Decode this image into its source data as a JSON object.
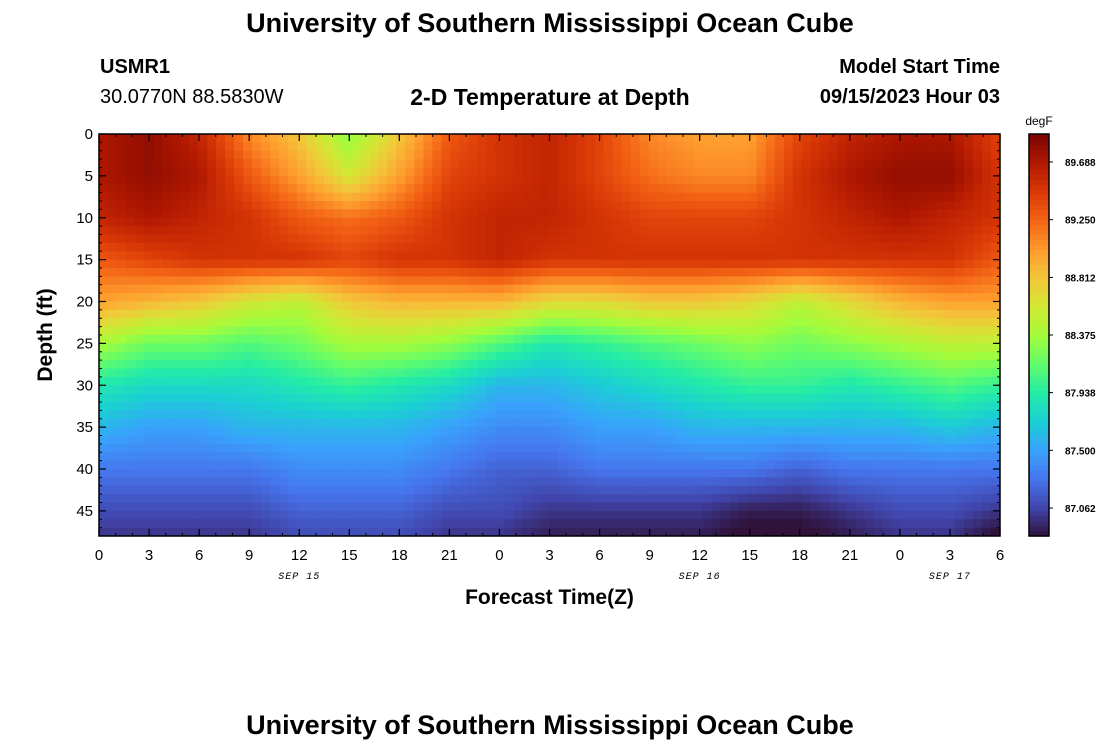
{
  "header": {
    "title": "University of Southern Mississippi Ocean Cube",
    "station_id": "USMR1",
    "coordinates": "30.0770N  88.5830W",
    "subtitle": "2-D Temperature at Depth",
    "model_start_label": "Model Start Time",
    "model_start_value": "09/15/2023 Hour 03"
  },
  "footer": {
    "title": "University of Southern Mississippi Ocean Cube"
  },
  "chart_data": {
    "type": "heatmap",
    "title": "2-D Temperature at Depth",
    "xlabel": "Forecast Time(Z)",
    "ylabel": "Depth (ft)",
    "x_ticks": [
      "0",
      "3",
      "6",
      "9",
      "12",
      "15",
      "18",
      "21",
      "0",
      "3",
      "6",
      "9",
      "12",
      "15",
      "18",
      "21",
      "0",
      "3",
      "6"
    ],
    "x_dates": [
      {
        "label": "SEP 15",
        "hour": 12
      },
      {
        "label": "SEP 16",
        "hour": 36
      },
      {
        "label": "SEP 17",
        "hour": 51
      }
    ],
    "xlim_hours": [
      0,
      54
    ],
    "y_ticks": [
      0,
      5,
      10,
      15,
      20,
      25,
      30,
      35,
      40,
      45
    ],
    "ylim": [
      0,
      48
    ],
    "y_inverted": true,
    "colorbar": {
      "unit": "degF",
      "ticks": [
        "89.688",
        "89.250",
        "88.812",
        "88.375",
        "87.938",
        "87.500",
        "87.062"
      ],
      "range": [
        86.85,
        89.9
      ]
    },
    "colormap": [
      "#30123b",
      "#4145ab",
      "#4675ed",
      "#39a2fc",
      "#1bcfd4",
      "#24eca6",
      "#61fc6c",
      "#a4fc3b",
      "#d1e834",
      "#f3c63a",
      "#fe9b2d",
      "#f36315",
      "#d93806",
      "#b11901",
      "#7a0402"
    ],
    "depths_ft": [
      0,
      5,
      10,
      15,
      20,
      25,
      30,
      35,
      40,
      45,
      48
    ],
    "hours": [
      0,
      3,
      6,
      9,
      12,
      15,
      18,
      21,
      24,
      27,
      30,
      33,
      36,
      39,
      42,
      45,
      48,
      51,
      54
    ],
    "values_degF": [
      [
        89.7,
        89.8,
        89.6,
        89.1,
        88.8,
        88.3,
        88.8,
        89.3,
        89.5,
        89.6,
        89.4,
        89.1,
        89.0,
        89.0,
        89.4,
        89.6,
        89.7,
        89.7,
        89.4
      ],
      [
        89.7,
        89.8,
        89.7,
        89.3,
        89.0,
        88.6,
        89.0,
        89.4,
        89.5,
        89.6,
        89.4,
        89.2,
        89.1,
        89.1,
        89.5,
        89.7,
        89.8,
        89.8,
        89.5
      ],
      [
        89.6,
        89.7,
        89.6,
        89.5,
        89.3,
        89.2,
        89.3,
        89.5,
        89.6,
        89.6,
        89.5,
        89.4,
        89.4,
        89.4,
        89.5,
        89.6,
        89.7,
        89.6,
        89.5
      ],
      [
        89.3,
        89.4,
        89.5,
        89.5,
        89.5,
        89.4,
        89.5,
        89.5,
        89.6,
        89.5,
        89.5,
        89.5,
        89.5,
        89.5,
        89.5,
        89.5,
        89.5,
        89.5,
        89.3
      ],
      [
        89.0,
        88.9,
        88.8,
        88.6,
        88.5,
        88.8,
        88.9,
        88.9,
        88.9,
        88.7,
        88.7,
        88.8,
        88.8,
        88.7,
        88.5,
        88.7,
        88.9,
        89.0,
        89.0
      ],
      [
        88.4,
        88.2,
        88.2,
        88.1,
        88.2,
        88.4,
        88.4,
        88.3,
        88.1,
        87.9,
        88.0,
        88.1,
        88.2,
        88.3,
        88.2,
        88.3,
        88.4,
        88.5,
        88.5
      ],
      [
        87.9,
        87.8,
        87.8,
        87.8,
        87.9,
        88.0,
        87.9,
        87.8,
        87.6,
        87.6,
        87.7,
        87.8,
        87.9,
        88.0,
        88.0,
        87.9,
        88.0,
        88.1,
        88.0
      ],
      [
        87.6,
        87.5,
        87.5,
        87.6,
        87.6,
        87.6,
        87.6,
        87.5,
        87.4,
        87.4,
        87.5,
        87.5,
        87.6,
        87.6,
        87.6,
        87.6,
        87.6,
        87.7,
        87.6
      ],
      [
        87.3,
        87.3,
        87.3,
        87.3,
        87.4,
        87.4,
        87.4,
        87.3,
        87.2,
        87.2,
        87.3,
        87.3,
        87.3,
        87.3,
        87.2,
        87.3,
        87.3,
        87.3,
        87.3
      ],
      [
        87.1,
        87.1,
        87.1,
        87.1,
        87.2,
        87.2,
        87.2,
        87.1,
        87.1,
        87.0,
        87.0,
        87.0,
        87.0,
        86.9,
        86.9,
        87.0,
        87.1,
        87.1,
        87.0
      ],
      [
        87.0,
        87.0,
        87.0,
        87.0,
        87.1,
        87.1,
        87.1,
        87.0,
        87.0,
        86.9,
        86.9,
        86.9,
        86.9,
        86.8,
        86.8,
        86.9,
        87.0,
        87.0,
        86.8
      ]
    ]
  }
}
